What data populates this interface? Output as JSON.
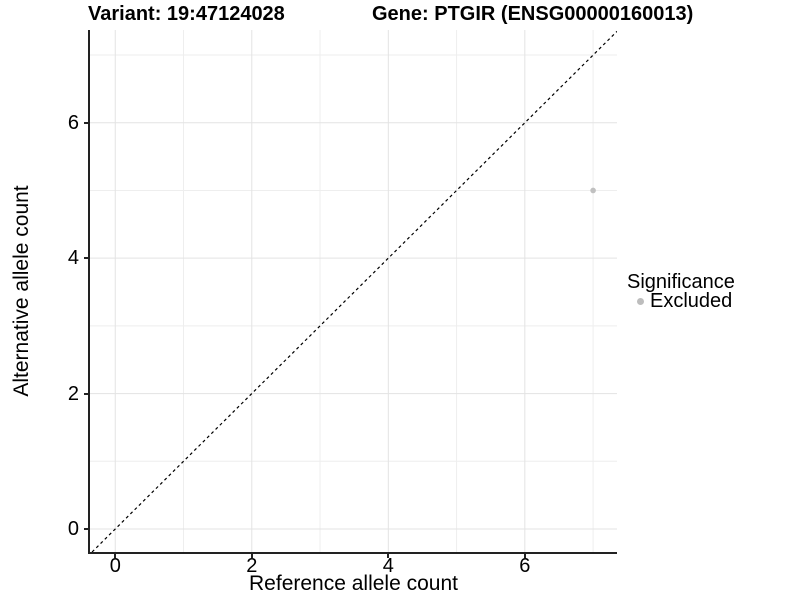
{
  "header": {
    "variant_title": "Variant: 19:47124028",
    "gene_title": "Gene: PTGIR (ENSG00000160013)"
  },
  "chart_data": {
    "type": "scatter",
    "title_left": "Variant: 19:47124028",
    "title_right": "Gene: PTGIR (ENSG00000160013)",
    "xlabel": "Reference allele count",
    "ylabel": "Alternative allele count",
    "xlim": [
      -0.37,
      7.35
    ],
    "ylim": [
      -0.34,
      7.37
    ],
    "x_ticks": [
      0,
      2,
      4,
      6
    ],
    "y_ticks": [
      0,
      2,
      4,
      6
    ],
    "minor_gridlines_x": [
      1,
      3,
      5,
      7
    ],
    "minor_gridlines_y": [
      1,
      3,
      5,
      7
    ],
    "grid": true,
    "points": [
      {
        "x": 7,
        "y": 5,
        "series": "Excluded"
      }
    ],
    "reference_line": {
      "type": "identity",
      "style": "dashed",
      "color": "#000000",
      "dash": "3,3"
    },
    "legend": {
      "title": "Significance",
      "position": "right",
      "entries": [
        {
          "label": "Excluded",
          "color": "#bdbdbd"
        }
      ]
    },
    "colors": {
      "point": "#c0c0c0",
      "grid_major": "#e3e3e3",
      "grid_minor": "#eeeeee",
      "axis": "#222222",
      "text": "#000000",
      "background": "#ffffff"
    }
  }
}
